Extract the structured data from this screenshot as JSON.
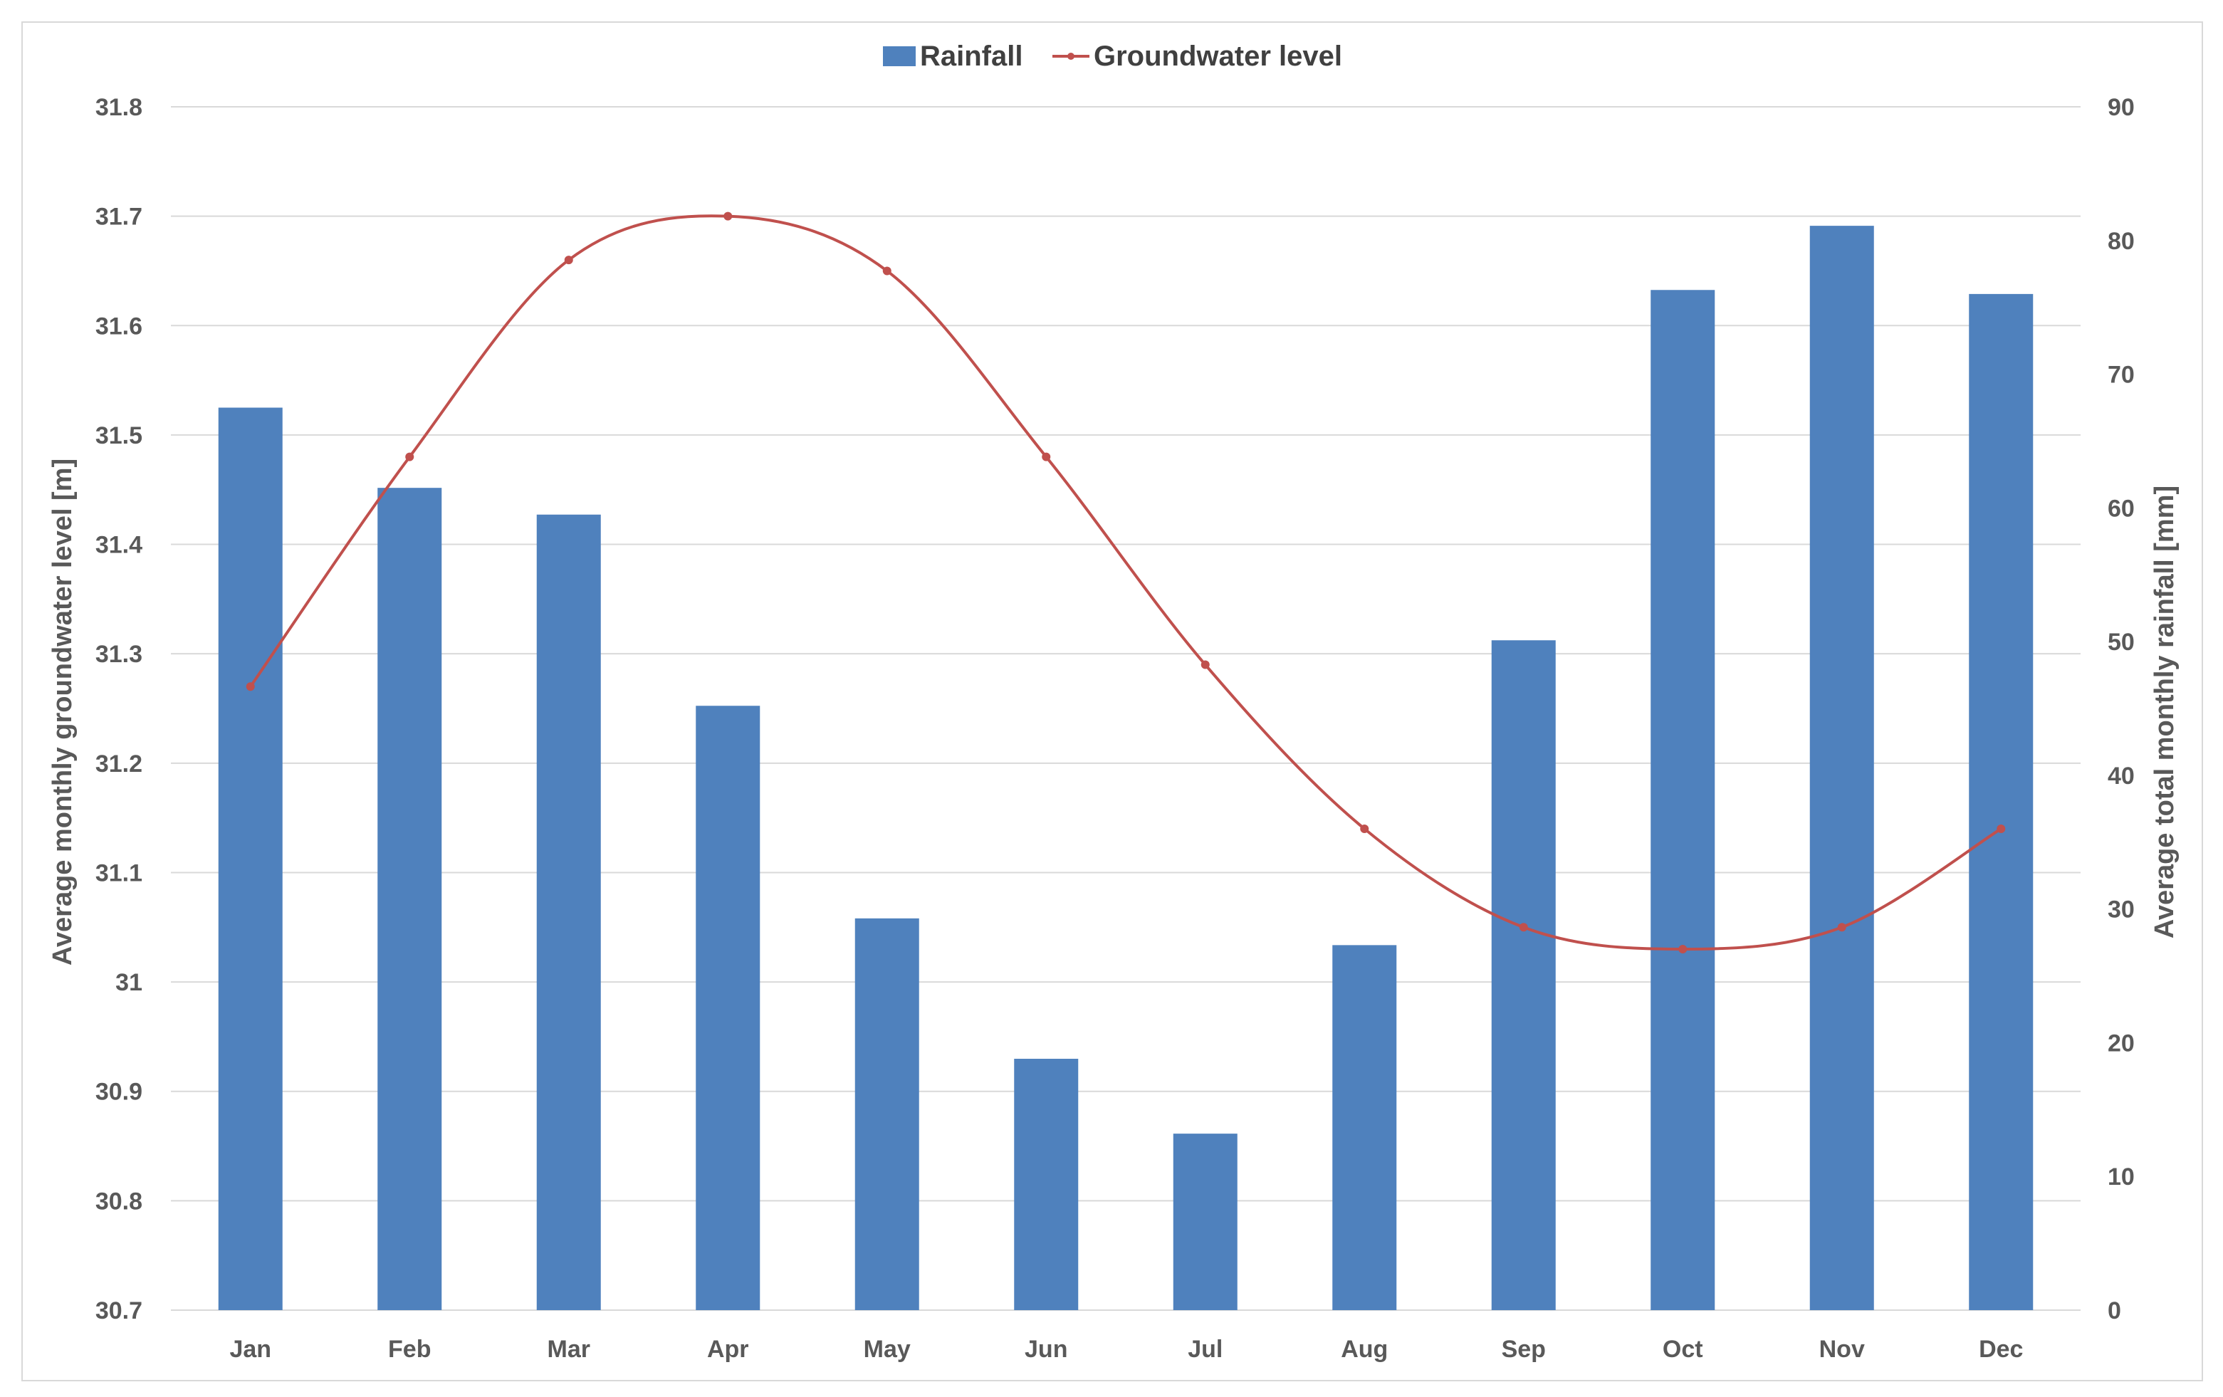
{
  "chart_data": {
    "type": "bar+line",
    "categories": [
      "Jan",
      "Feb",
      "Mar",
      "Apr",
      "May",
      "Jun",
      "Jul",
      "Aug",
      "Sep",
      "Oct",
      "Nov",
      "Dec"
    ],
    "series": [
      {
        "name": "Rainfall",
        "type": "bar",
        "axis": "right",
        "color": "#4f81bd",
        "values": [
          67.5,
          61.5,
          59.5,
          45.2,
          29.3,
          18.8,
          13.2,
          27.3,
          50.1,
          76.3,
          81.1,
          76.0
        ]
      },
      {
        "name": "Groundwater level",
        "type": "line",
        "axis": "left",
        "color": "#c0504d",
        "values": [
          31.27,
          31.48,
          31.66,
          31.7,
          31.65,
          31.48,
          31.29,
          31.14,
          31.05,
          31.03,
          31.05,
          31.14
        ]
      }
    ],
    "y_left": {
      "label": "Average monthly groundwater level [m]",
      "min": 30.7,
      "max": 31.8,
      "ticks": [
        "30.7",
        "30.8",
        "30.9",
        "31",
        "31.1",
        "31.2",
        "31.3",
        "31.4",
        "31.5",
        "31.6",
        "31.7",
        "31.8"
      ]
    },
    "y_right": {
      "label": "Average total monthly rainfall [mm]",
      "min": 0,
      "max": 90,
      "ticks": [
        "0",
        "10",
        "20",
        "30",
        "40",
        "50",
        "60",
        "70",
        "80",
        "90"
      ]
    },
    "grid": true,
    "legend": "top-center"
  }
}
